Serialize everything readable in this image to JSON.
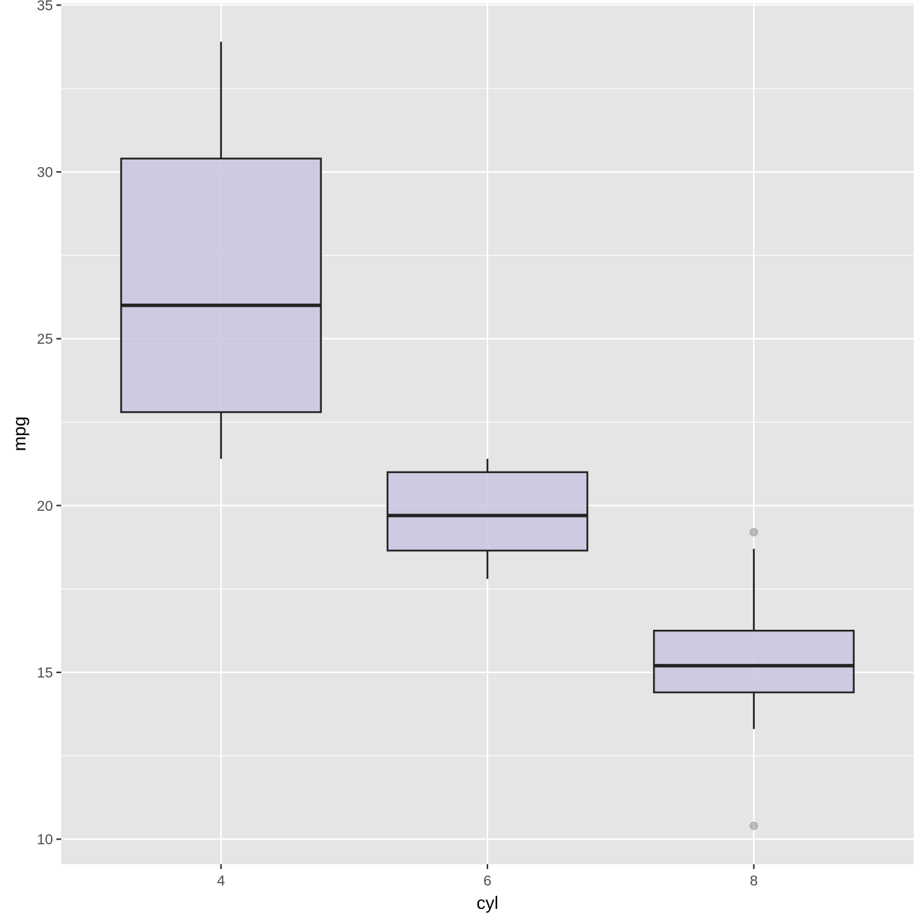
{
  "chart_data": {
    "type": "boxplot",
    "xlabel": "cyl",
    "ylabel": "mpg",
    "categories": [
      "4",
      "6",
      "8"
    ],
    "ylim": [
      9.25,
      35.05
    ],
    "y_ticks": [
      10,
      15,
      20,
      25,
      30,
      35
    ],
    "y_minor_ticks": [
      12.5,
      17.5,
      22.5,
      27.5,
      32.5
    ],
    "grid": true,
    "box_fill_color": "#cac6e0",
    "box_line_color": "#222222",
    "panel_background": "#e5e5e5",
    "grid_color": "#ffffff",
    "outlier_color": "#999999",
    "boxes": [
      {
        "category": "4",
        "whisker_low": 21.4,
        "q1": 22.8,
        "median": 26.0,
        "q3": 30.4,
        "whisker_high": 33.9,
        "outliers": []
      },
      {
        "category": "6",
        "whisker_low": 17.8,
        "q1": 18.65,
        "median": 19.7,
        "q3": 21.0,
        "whisker_high": 21.4,
        "outliers": []
      },
      {
        "category": "8",
        "whisker_low": 13.3,
        "q1": 14.4,
        "median": 15.2,
        "q3": 16.25,
        "whisker_high": 18.7,
        "outliers": [
          19.2,
          10.4
        ]
      }
    ]
  }
}
